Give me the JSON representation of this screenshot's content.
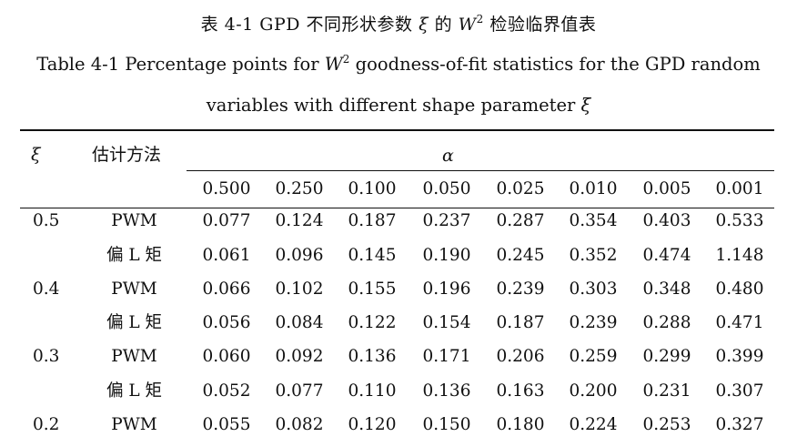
{
  "caption": {
    "cn_prefix": "表 4-1 GPD 不同形状参数 ",
    "cn_xi": "ξ",
    "cn_mid": " 的 ",
    "cn_w": "W",
    "cn_sup": "2",
    "cn_suffix": " 检验临界值表",
    "en_prefix": "Table 4-1 Percentage points for ",
    "en_w": "W",
    "en_sup": "2",
    "en_suffix": " goodness-of-fit statistics for the GPD random",
    "en_line2_prefix": "variables with different shape parameter ",
    "en_line2_xi": "ξ"
  },
  "table": {
    "xi_header": "ξ",
    "method_header": "估计方法",
    "alpha_header": "α",
    "alpha_values": [
      "0.500",
      "0.250",
      "0.100",
      "0.050",
      "0.025",
      "0.010",
      "0.005",
      "0.001"
    ],
    "rows": [
      {
        "xi": "0.5",
        "method": "PWM",
        "values": [
          "0.077",
          "0.124",
          "0.187",
          "0.237",
          "0.287",
          "0.354",
          "0.403",
          "0.533"
        ]
      },
      {
        "xi": "",
        "method": "偏 L 矩",
        "values": [
          "0.061",
          "0.096",
          "0.145",
          "0.190",
          "0.245",
          "0.352",
          "0.474",
          "1.148"
        ]
      },
      {
        "xi": "0.4",
        "method": "PWM",
        "values": [
          "0.066",
          "0.102",
          "0.155",
          "0.196",
          "0.239",
          "0.303",
          "0.348",
          "0.480"
        ]
      },
      {
        "xi": "",
        "method": "偏 L 矩",
        "values": [
          "0.056",
          "0.084",
          "0.122",
          "0.154",
          "0.187",
          "0.239",
          "0.288",
          "0.471"
        ]
      },
      {
        "xi": "0.3",
        "method": "PWM",
        "values": [
          "0.060",
          "0.092",
          "0.136",
          "0.171",
          "0.206",
          "0.259",
          "0.299",
          "0.399"
        ]
      },
      {
        "xi": "",
        "method": "偏 L 矩",
        "values": [
          "0.052",
          "0.077",
          "0.110",
          "0.136",
          "0.163",
          "0.200",
          "0.231",
          "0.307"
        ]
      },
      {
        "xi": "0.2",
        "method": "PWM",
        "values": [
          "0.055",
          "0.082",
          "0.120",
          "0.150",
          "0.180",
          "0.224",
          "0.253",
          "0.327"
        ]
      }
    ]
  }
}
